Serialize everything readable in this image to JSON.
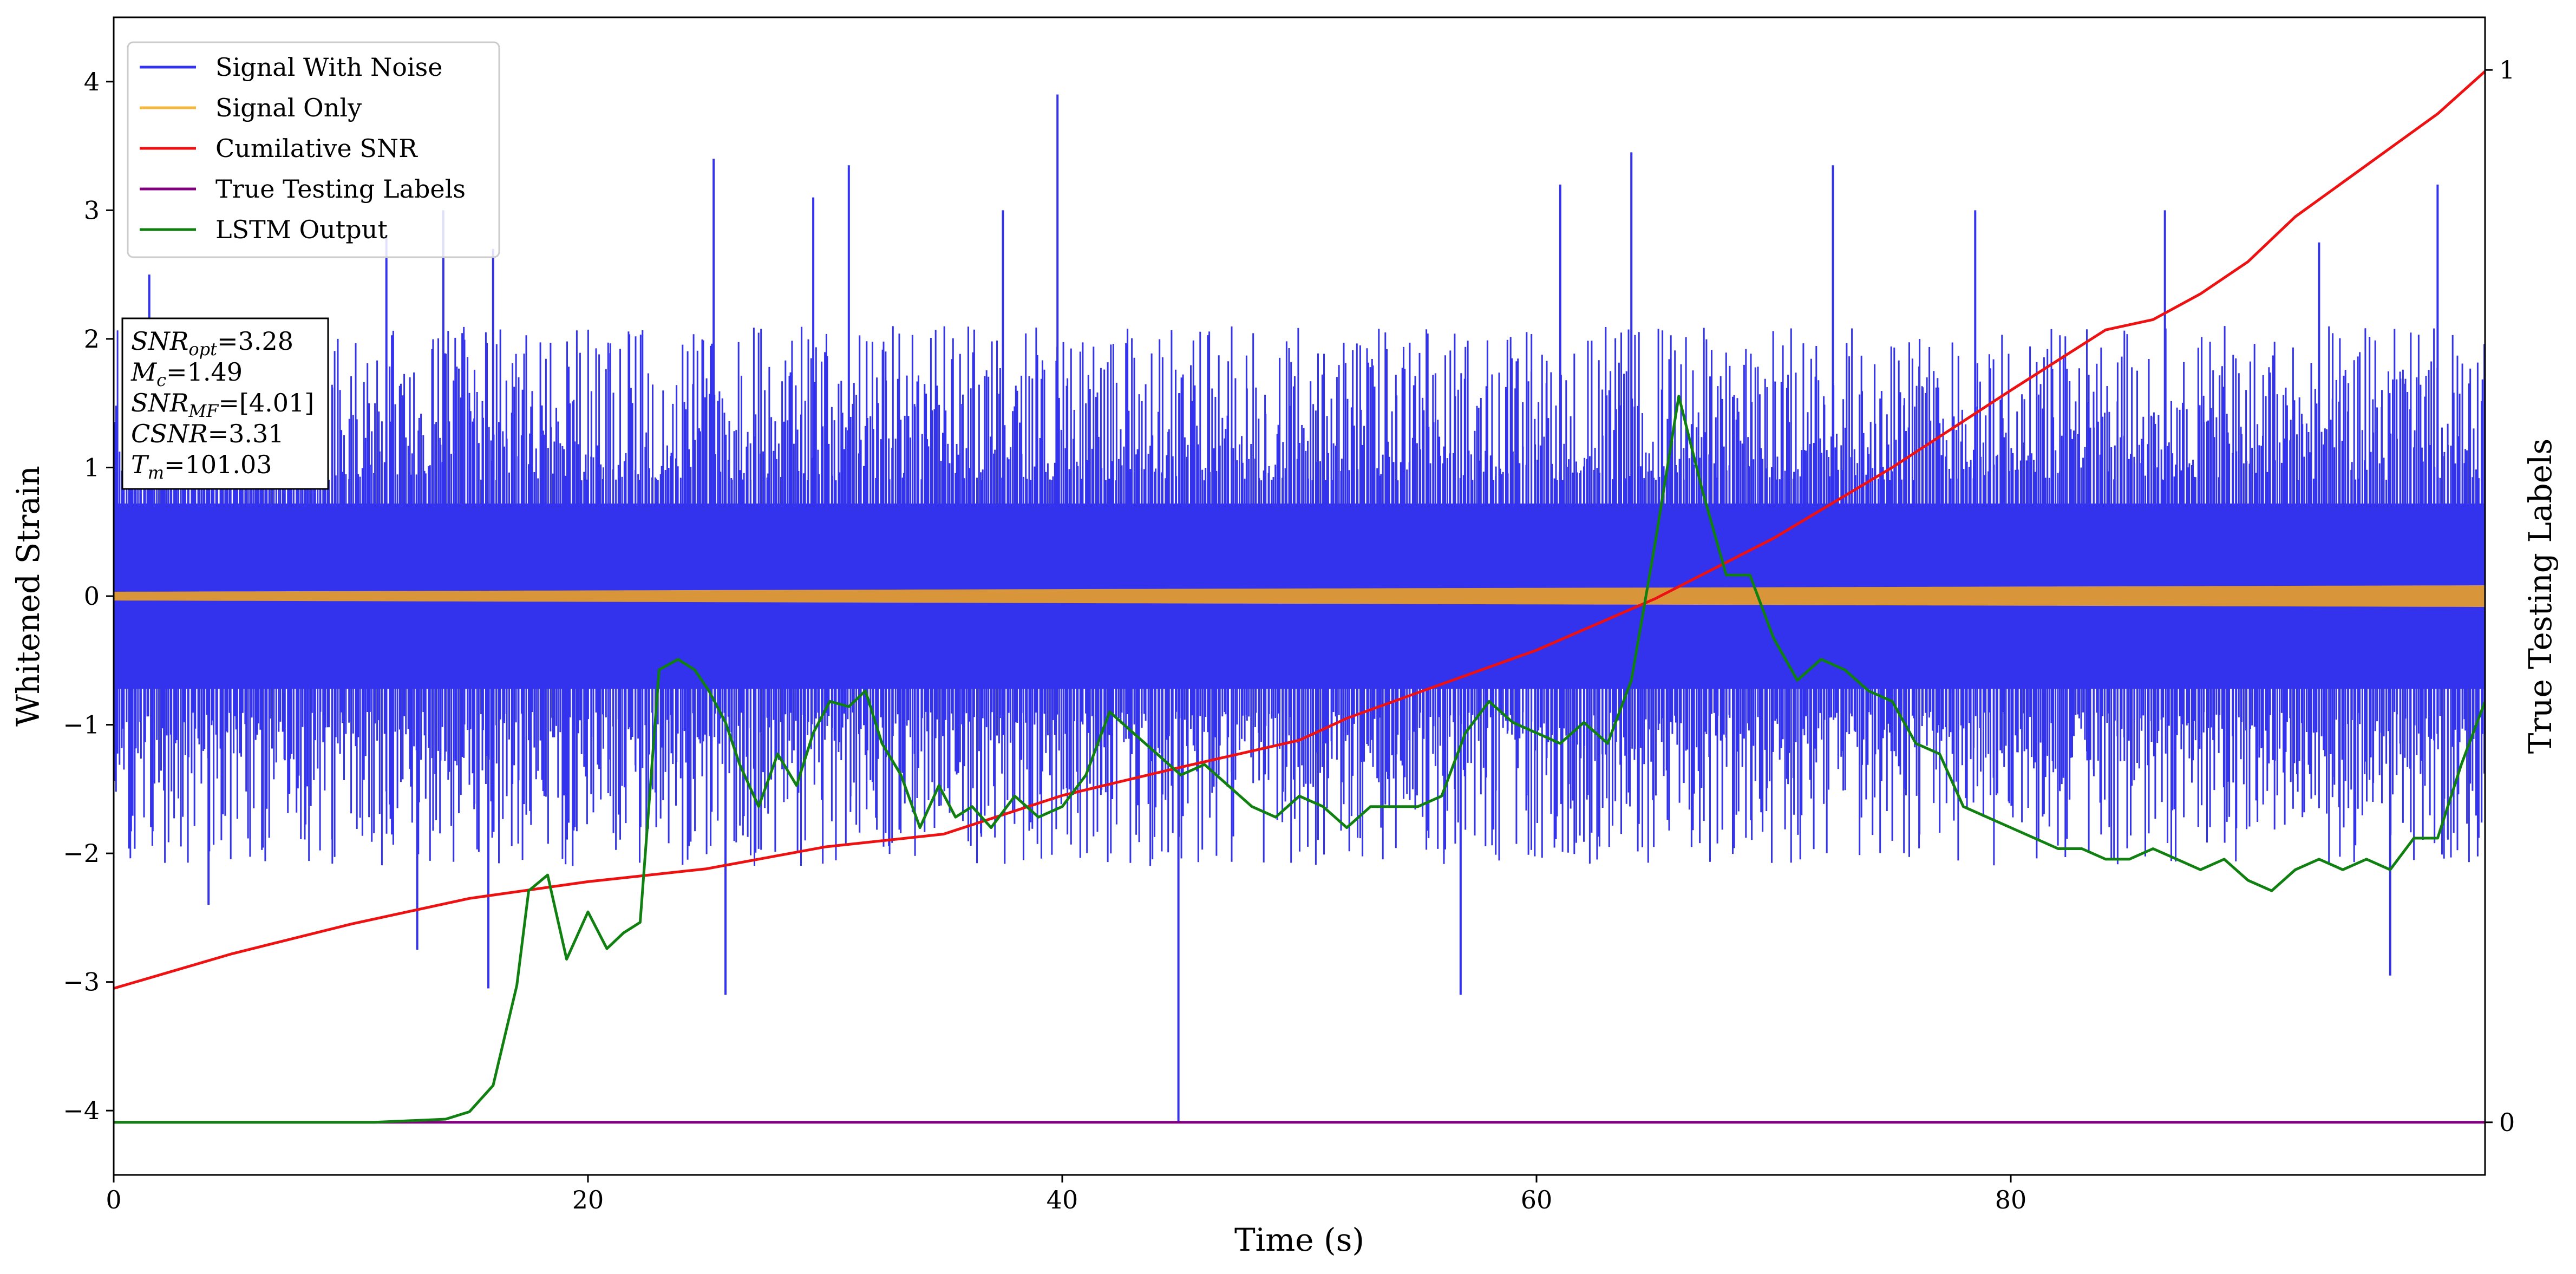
{
  "chart_data": {
    "type": "line",
    "xlabel": "Time (s)",
    "ylabel": "Whitened Strain",
    "ylabel_right": "True Testing Labels",
    "xlim": [
      0,
      100
    ],
    "ylim": [
      -4.5,
      4.5
    ],
    "ylim_right": [
      -0.05,
      1.05
    ],
    "x_ticks": [
      0,
      20,
      40,
      60,
      80
    ],
    "y_ticks": [
      -4,
      -3,
      -2,
      -1,
      0,
      1,
      2,
      3,
      4
    ],
    "y_ticks_right": [
      0,
      1
    ],
    "grid": false,
    "legend_position": "top-left",
    "legend": [
      {
        "label": "Signal With Noise",
        "color": "#3333ee"
      },
      {
        "label": "Signal Only",
        "color": "#f5b942"
      },
      {
        "label": "Cumilative SNR",
        "color": "#ee1111"
      },
      {
        "label": "True Testing Labels",
        "color": "#800080"
      },
      {
        "label": "LSTM Output",
        "color": "#108010"
      }
    ],
    "annotation": {
      "lines": [
        {
          "base": "SNR",
          "sub": "opt",
          "rest": "=3.28"
        },
        {
          "base": "M",
          "sub": "c",
          "rest": "=1.49"
        },
        {
          "base": "SNR",
          "sub": "MF",
          "rest": "=[4.01]"
        },
        {
          "base": "CSNR",
          "sub": "",
          "rest": "=3.31"
        },
        {
          "base": "T",
          "sub": "m",
          "rest": "=101.03"
        }
      ]
    },
    "series": [
      {
        "name": "Signal With Noise",
        "axis": "left",
        "style": "noise",
        "band_center": 0,
        "typical_max": 2.0,
        "typical_min": -2.0,
        "spikes": [
          {
            "x": 1.5,
            "y": 2.5
          },
          {
            "x": 4.0,
            "y": -2.4
          },
          {
            "x": 11.5,
            "y": 2.8
          },
          {
            "x": 12.8,
            "y": -2.75
          },
          {
            "x": 13.9,
            "y": 3.0
          },
          {
            "x": 16.0,
            "y": 2.7
          },
          {
            "x": 15.8,
            "y": -3.05
          },
          {
            "x": 25.3,
            "y": 3.4
          },
          {
            "x": 25.8,
            "y": -3.1
          },
          {
            "x": 29.5,
            "y": 3.1
          },
          {
            "x": 31.0,
            "y": 3.35
          },
          {
            "x": 37.5,
            "y": 3.0
          },
          {
            "x": 39.8,
            "y": 3.9
          },
          {
            "x": 44.9,
            "y": -4.1
          },
          {
            "x": 56.8,
            "y": -3.1
          },
          {
            "x": 61.0,
            "y": 3.2
          },
          {
            "x": 64.0,
            "y": 3.45
          },
          {
            "x": 72.5,
            "y": 3.35
          },
          {
            "x": 78.5,
            "y": 3.0
          },
          {
            "x": 86.5,
            "y": 3.0
          },
          {
            "x": 93.0,
            "y": 2.75
          },
          {
            "x": 96.0,
            "y": -2.95
          },
          {
            "x": 98.0,
            "y": 3.2
          }
        ]
      },
      {
        "name": "Signal Only",
        "axis": "left",
        "style": "band",
        "amplitude_start": 0.03,
        "amplitude_end": 0.08,
        "draw_color": "#d9953a"
      },
      {
        "name": "Cumilative SNR",
        "axis": "left",
        "x": [
          0,
          5,
          10,
          15,
          20,
          25,
          30,
          35,
          40,
          45,
          50,
          52,
          55,
          60,
          65,
          70,
          75,
          80,
          84,
          86,
          88,
          90,
          92,
          95,
          98,
          100
        ],
        "y": [
          -3.05,
          -2.78,
          -2.55,
          -2.35,
          -2.22,
          -2.12,
          -1.95,
          -1.85,
          -1.55,
          -1.33,
          -1.12,
          -0.95,
          -0.75,
          -0.42,
          -0.02,
          0.45,
          1.0,
          1.6,
          2.07,
          2.15,
          2.35,
          2.6,
          2.95,
          3.35,
          3.75,
          4.08
        ]
      },
      {
        "name": "True Testing Labels",
        "axis": "right",
        "x": [
          0,
          100
        ],
        "y": [
          0,
          0
        ]
      },
      {
        "name": "LSTM Output",
        "axis": "right",
        "x": [
          0,
          11,
          14,
          15,
          16,
          17,
          17.5,
          18.3,
          19.1,
          20.0,
          20.8,
          21.5,
          22.2,
          23.0,
          23.8,
          24.5,
          25.1,
          25.8,
          26.4,
          27.2,
          28.0,
          28.8,
          29.5,
          30.2,
          31.0,
          31.7,
          32.4,
          33.2,
          34.0,
          34.8,
          35.5,
          36.2,
          37.0,
          38.0,
          39.0,
          40.0,
          41.0,
          42.0,
          43.0,
          44.0,
          45.0,
          46.0,
          47.0,
          48.0,
          49.0,
          50.0,
          51.0,
          52.0,
          53.0,
          54.0,
          55.0,
          56.0,
          57.0,
          58.0,
          59.0,
          60.0,
          61.0,
          62.0,
          63.0,
          64.0,
          65.0,
          66.0,
          67.0,
          68.0,
          69.0,
          70.0,
          71.0,
          72.0,
          73.0,
          74.0,
          75.0,
          76.0,
          77.0,
          78.0,
          79.0,
          80.0,
          81.0,
          82.0,
          83.0,
          84.0,
          85.0,
          86.0,
          87.0,
          88.0,
          89.0,
          90.0,
          91.0,
          92.0,
          93.0,
          94.0,
          95.0,
          96.0,
          97.0,
          98.0,
          99.0,
          100.0
        ],
        "y": [
          0.0,
          0.0,
          0.003,
          0.01,
          0.035,
          0.13,
          0.22,
          0.235,
          0.155,
          0.2,
          0.165,
          0.18,
          0.19,
          0.43,
          0.44,
          0.43,
          0.41,
          0.38,
          0.34,
          0.3,
          0.35,
          0.32,
          0.37,
          0.4,
          0.395,
          0.41,
          0.36,
          0.33,
          0.28,
          0.32,
          0.29,
          0.3,
          0.28,
          0.31,
          0.29,
          0.3,
          0.33,
          0.39,
          0.37,
          0.35,
          0.33,
          0.34,
          0.32,
          0.3,
          0.29,
          0.31,
          0.3,
          0.28,
          0.3,
          0.3,
          0.3,
          0.31,
          0.37,
          0.4,
          0.38,
          0.37,
          0.36,
          0.38,
          0.36,
          0.42,
          0.55,
          0.69,
          0.6,
          0.52,
          0.52,
          0.46,
          0.42,
          0.44,
          0.43,
          0.41,
          0.4,
          0.36,
          0.35,
          0.3,
          0.29,
          0.28,
          0.27,
          0.26,
          0.26,
          0.25,
          0.25,
          0.26,
          0.25,
          0.24,
          0.25,
          0.23,
          0.22,
          0.24,
          0.25,
          0.24,
          0.25,
          0.24,
          0.27,
          0.27,
          0.34,
          0.4
        ]
      }
    ]
  }
}
